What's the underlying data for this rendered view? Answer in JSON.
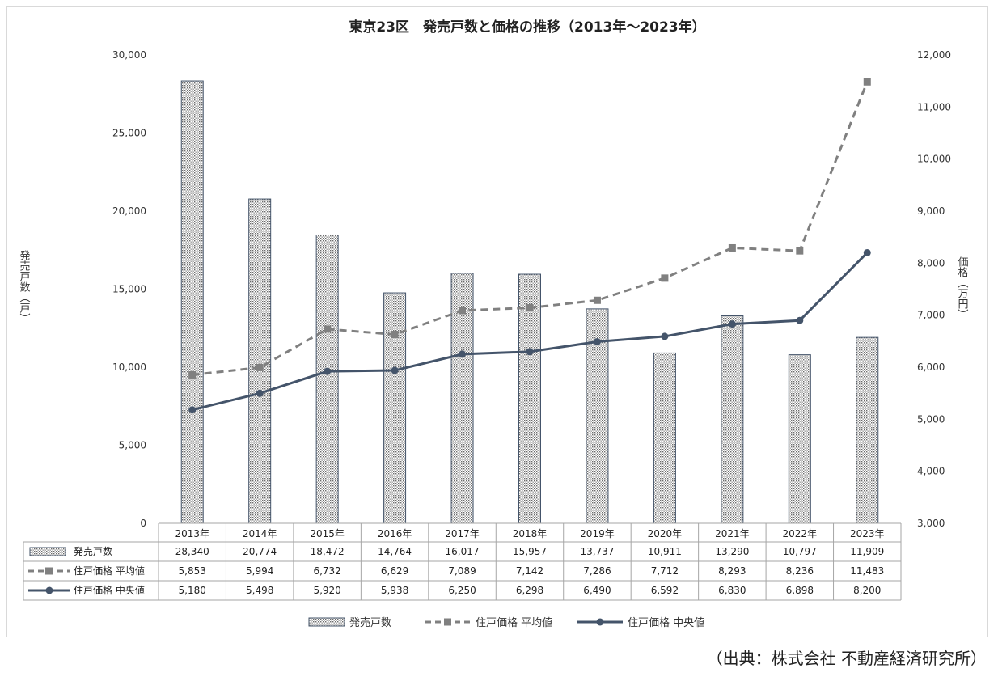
{
  "chart_data": {
    "type": "bar",
    "title": "東京23区　発売戸数と価格の推移（2013年～2023年）",
    "categories": [
      "2013年",
      "2014年",
      "2015年",
      "2016年",
      "2017年",
      "2018年",
      "2019年",
      "2020年",
      "2021年",
      "2022年",
      "2023年"
    ],
    "ylabel": "発売戸数（戸）",
    "y2label": "価格（万円）",
    "ylim": [
      0,
      30000
    ],
    "y2lim": [
      3000,
      12000
    ],
    "yticks": [
      "0",
      "5,000",
      "10,000",
      "15,000",
      "20,000",
      "25,000",
      "30,000"
    ],
    "y2ticks": [
      "3,000",
      "4,000",
      "5,000",
      "6,000",
      "7,000",
      "8,000",
      "9,000",
      "10,000",
      "11,000",
      "12,000"
    ],
    "grid": false,
    "legend_position": "bottom",
    "series": [
      {
        "name": "発売戸数",
        "kind": "bar",
        "axis": "left",
        "values": [
          28340,
          20774,
          18472,
          14764,
          16017,
          15957,
          13737,
          10911,
          13290,
          10797,
          11909
        ],
        "labels": [
          "28,340",
          "20,774",
          "18,472",
          "14,764",
          "16,017",
          "15,957",
          "13,737",
          "10,911",
          "13,290",
          "10,797",
          "11,909"
        ]
      },
      {
        "name": "住戸価格 平均値",
        "kind": "line-dashed",
        "axis": "right",
        "color": "#808080",
        "values": [
          5853,
          5994,
          6732,
          6629,
          7089,
          7142,
          7286,
          7712,
          8293,
          8236,
          11483
        ],
        "labels": [
          "5,853",
          "5,994",
          "6,732",
          "6,629",
          "7,089",
          "7,142",
          "7,286",
          "7,712",
          "8,293",
          "8,236",
          "11,483"
        ]
      },
      {
        "name": "住戸価格 中央値",
        "kind": "line",
        "axis": "right",
        "color": "#44546a",
        "values": [
          5180,
          5498,
          5920,
          5938,
          6250,
          6298,
          6490,
          6592,
          6830,
          6898,
          8200
        ],
        "labels": [
          "5,180",
          "5,498",
          "5,920",
          "5,938",
          "6,250",
          "6,298",
          "6,490",
          "6,592",
          "6,830",
          "6,898",
          "8,200"
        ]
      }
    ]
  },
  "source": "（出典：株式会社 不動産経済研究所）"
}
